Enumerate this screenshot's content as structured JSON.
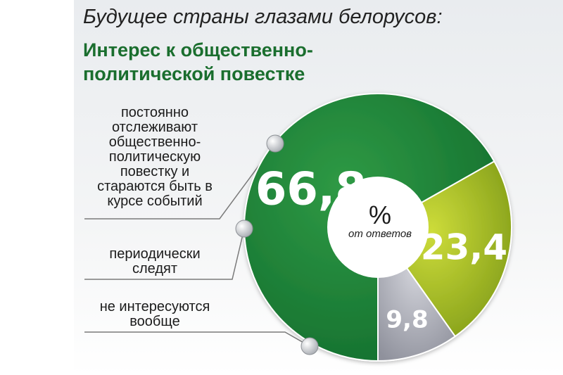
{
  "header": {
    "title": "Будущее страны глазами белорусов:",
    "subtitle": "Интерес к общественно-политической повестке"
  },
  "center": {
    "unit": "%",
    "note": "от ответов"
  },
  "chart_data": {
    "type": "pie",
    "title": "Интерес к общественно-политической повестке",
    "unit": "%",
    "slices": [
      {
        "label": "постоянно отслеживают общественно-политическую повестку и стараются быть в курсе событий",
        "value": 66.8,
        "display": "66,8",
        "color": "#1b7a36"
      },
      {
        "label": "периодически следят",
        "value": 23.4,
        "display": "23,4",
        "color": "#a3b81f"
      },
      {
        "label": "не интересуются вообще",
        "value": 9.8,
        "display": "9,8",
        "color": "#a7a9b4"
      }
    ]
  }
}
